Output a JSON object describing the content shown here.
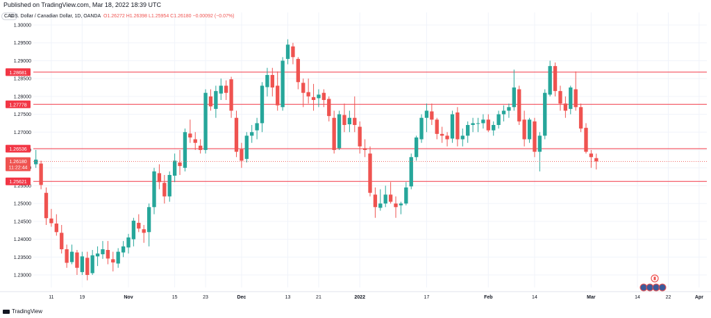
{
  "header": {
    "published": "Published on TradingView.com, Mar 18, 2022 18:39 UTC"
  },
  "legend": {
    "symbol": "U.S. Dollar / Canadian Dollar, 1D, OANDA",
    "open": "O1.26272",
    "high": "H1.26398",
    "low": "L1.25954",
    "close": "C1.26180",
    "change": "−0.00092 (−0.07%)",
    "currency": "CAD"
  },
  "price_badge": {
    "price": "1.26180",
    "countdown": "11:22:44"
  },
  "footer": {
    "brand": "TradingView"
  },
  "colors": {
    "up": "#26a69a",
    "down": "#ef5350",
    "hline": "#f23645",
    "text": "#131722",
    "grid": "#f0f3fa"
  },
  "icons": [
    "tradingview-logo-icon",
    "canada-flag-icon",
    "us-flag-icon"
  ],
  "chart_data": {
    "type": "candlestick",
    "ylim": [
      1.2265,
      1.3035
    ],
    "y_ticks": [
      "1.30500",
      "1.30000",
      "1.29500",
      "1.29000",
      "1.28500",
      "1.28000",
      "1.27500",
      "1.27000",
      "1.26500",
      "1.26000",
      "1.25500",
      "1.25000",
      "1.24500",
      "1.24000",
      "1.23500",
      "1.23000"
    ],
    "x_ticks": [
      {
        "label": "11",
        "i": 3
      },
      {
        "label": "19",
        "i": 9
      },
      {
        "label": "Nov",
        "i": 18
      },
      {
        "label": "15",
        "i": 27
      },
      {
        "label": "23",
        "i": 33
      },
      {
        "label": "Dec",
        "i": 40
      },
      {
        "label": "13",
        "i": 49
      },
      {
        "label": "21",
        "i": 55
      },
      {
        "label": "2022",
        "i": 63
      },
      {
        "label": "17",
        "i": 76
      },
      {
        "label": "Feb",
        "i": 88
      },
      {
        "label": "14",
        "i": 97
      },
      {
        "label": "Mar",
        "i": 108
      },
      {
        "label": "14",
        "i": 117
      },
      {
        "label": "22",
        "i": 123
      },
      {
        "label": "Apr",
        "i": 129
      }
    ],
    "horizontal_levels": [
      "1.28681",
      "1.27778",
      "1.26536",
      "1.25621"
    ],
    "candles": [
      [
        1.261,
        1.265,
        1.26,
        1.2623
      ],
      [
        1.2612,
        1.262,
        1.254,
        1.2552
      ],
      [
        1.253,
        1.2545,
        1.244,
        1.2459
      ],
      [
        1.2458,
        1.2485,
        1.2435,
        1.2445
      ],
      [
        1.2444,
        1.247,
        1.241,
        1.242
      ],
      [
        1.2418,
        1.244,
        1.236,
        1.2372
      ],
      [
        1.2372,
        1.2385,
        1.232,
        1.2334
      ],
      [
        1.2336,
        1.2385,
        1.233,
        1.2365
      ],
      [
        1.2363,
        1.237,
        1.23,
        1.232
      ],
      [
        1.2308,
        1.2365,
        1.23,
        1.2352
      ],
      [
        1.2348,
        1.2365,
        1.2285,
        1.23
      ],
      [
        1.2305,
        1.237,
        1.23,
        1.2355
      ],
      [
        1.2352,
        1.238,
        1.2325,
        1.236
      ],
      [
        1.2358,
        1.2395,
        1.2345,
        1.2372
      ],
      [
        1.237,
        1.2395,
        1.233,
        1.2346
      ],
      [
        1.2344,
        1.2365,
        1.231,
        1.2335
      ],
      [
        1.2332,
        1.2375,
        1.232,
        1.2365
      ],
      [
        1.2363,
        1.2395,
        1.235,
        1.238
      ],
      [
        1.2377,
        1.2415,
        1.236,
        1.2405
      ],
      [
        1.24,
        1.246,
        1.238,
        1.2452
      ],
      [
        1.2446,
        1.247,
        1.242,
        1.243
      ],
      [
        1.2428,
        1.244,
        1.239,
        1.2418
      ],
      [
        1.242,
        1.25,
        1.238,
        1.249
      ],
      [
        1.249,
        1.26,
        1.247,
        1.259
      ],
      [
        1.2585,
        1.261,
        1.254,
        1.256
      ],
      [
        1.2558,
        1.258,
        1.25,
        1.252
      ],
      [
        1.252,
        1.259,
        1.2505,
        1.258
      ],
      [
        1.2578,
        1.264,
        1.256,
        1.262
      ],
      [
        1.2615,
        1.265,
        1.258,
        1.2605
      ],
      [
        1.26,
        1.271,
        1.259,
        1.27
      ],
      [
        1.2696,
        1.2735,
        1.267,
        1.2685
      ],
      [
        1.268,
        1.27,
        1.265,
        1.267
      ],
      [
        1.2662,
        1.268,
        1.264,
        1.265
      ],
      [
        1.265,
        1.282,
        1.264,
        1.281
      ],
      [
        1.28,
        1.282,
        1.276,
        1.2772
      ],
      [
        1.2765,
        1.283,
        1.274,
        1.2815
      ],
      [
        1.2808,
        1.285,
        1.279,
        1.283
      ],
      [
        1.283,
        1.2845,
        1.279,
        1.281
      ],
      [
        1.2848,
        1.2855,
        1.274,
        1.276
      ],
      [
        1.274,
        1.276,
        1.263,
        1.2645
      ],
      [
        1.2652,
        1.267,
        1.26,
        1.262
      ],
      [
        1.2625,
        1.27,
        1.2615,
        1.269
      ],
      [
        1.269,
        1.272,
        1.267,
        1.27
      ],
      [
        1.2705,
        1.274,
        1.268,
        1.2725
      ],
      [
        1.2725,
        1.284,
        1.27,
        1.283
      ],
      [
        1.2826,
        1.288,
        1.28,
        1.286
      ],
      [
        1.286,
        1.288,
        1.28,
        1.2825
      ],
      [
        1.283,
        1.287,
        1.276,
        1.2775
      ],
      [
        1.277,
        1.291,
        1.276,
        1.29
      ],
      [
        1.2905,
        1.296,
        1.289,
        1.2945
      ],
      [
        1.294,
        1.295,
        1.289,
        1.291
      ],
      [
        1.2905,
        1.291,
        1.282,
        1.284
      ],
      [
        1.2838,
        1.285,
        1.277,
        1.281
      ],
      [
        1.2812,
        1.285,
        1.278,
        1.28
      ],
      [
        1.2798,
        1.2835,
        1.276,
        1.279
      ],
      [
        1.2795,
        1.282,
        1.277,
        1.2805
      ],
      [
        1.281,
        1.282,
        1.277,
        1.279
      ],
      [
        1.2793,
        1.28,
        1.273,
        1.2745
      ],
      [
        1.274,
        1.276,
        1.264,
        1.265
      ],
      [
        1.2655,
        1.276,
        1.265,
        1.275
      ],
      [
        1.2748,
        1.278,
        1.27,
        1.272
      ],
      [
        1.2722,
        1.276,
        1.27,
        1.274
      ],
      [
        1.274,
        1.28,
        1.27,
        1.272
      ],
      [
        1.2715,
        1.273,
        1.264,
        1.266
      ],
      [
        1.2655,
        1.268,
        1.263,
        1.265
      ],
      [
        1.264,
        1.266,
        1.252,
        1.253
      ],
      [
        1.2525,
        1.2545,
        1.246,
        1.249
      ],
      [
        1.2488,
        1.254,
        1.248,
        1.25
      ],
      [
        1.25,
        1.255,
        1.249,
        1.2525
      ],
      [
        1.2525,
        1.256,
        1.25,
        1.2505
      ],
      [
        1.25,
        1.252,
        1.246,
        1.249
      ],
      [
        1.2495,
        1.2505,
        1.247,
        1.25
      ],
      [
        1.25,
        1.256,
        1.2495,
        1.2545
      ],
      [
        1.2548,
        1.264,
        1.254,
        1.263
      ],
      [
        1.263,
        1.269,
        1.262,
        1.2685
      ],
      [
        1.268,
        1.275,
        1.267,
        1.274
      ],
      [
        1.274,
        1.278,
        1.27,
        1.276
      ],
      [
        1.2758,
        1.278,
        1.272,
        1.2735
      ],
      [
        1.2735,
        1.274,
        1.268,
        1.2695
      ],
      [
        1.2695,
        1.2715,
        1.267,
        1.269
      ],
      [
        1.269,
        1.27,
        1.266,
        1.268
      ],
      [
        1.2682,
        1.276,
        1.267,
        1.275
      ],
      [
        1.2755,
        1.277,
        1.266,
        1.268
      ],
      [
        1.268,
        1.271,
        1.266,
        1.269
      ],
      [
        1.269,
        1.273,
        1.267,
        1.272
      ],
      [
        1.272,
        1.274,
        1.27,
        1.2725
      ],
      [
        1.2725,
        1.274,
        1.27,
        1.2725
      ],
      [
        1.2725,
        1.275,
        1.271,
        1.2735
      ],
      [
        1.2735,
        1.275,
        1.27,
        1.2705
      ],
      [
        1.2705,
        1.273,
        1.269,
        1.272
      ],
      [
        1.272,
        1.276,
        1.271,
        1.275
      ],
      [
        1.275,
        1.2775,
        1.273,
        1.276
      ],
      [
        1.276,
        1.278,
        1.274,
        1.277
      ],
      [
        1.277,
        1.2875,
        1.276,
        1.2825
      ],
      [
        1.282,
        1.283,
        1.272,
        1.273
      ],
      [
        1.2735,
        1.276,
        1.266,
        1.268
      ],
      [
        1.268,
        1.274,
        1.267,
        1.2735
      ],
      [
        1.273,
        1.274,
        1.263,
        1.2645
      ],
      [
        1.2645,
        1.27,
        1.259,
        1.269
      ],
      [
        1.269,
        1.282,
        1.268,
        1.281
      ],
      [
        1.2805,
        1.29,
        1.28,
        1.2885
      ],
      [
        1.2885,
        1.2895,
        1.28,
        1.2815
      ],
      [
        1.2815,
        1.283,
        1.276,
        1.278
      ],
      [
        1.278,
        1.28,
        1.274,
        1.276
      ],
      [
        1.2765,
        1.283,
        1.275,
        1.2825
      ],
      [
        1.282,
        1.287,
        1.276,
        1.277
      ],
      [
        1.277,
        1.278,
        1.27,
        1.271
      ],
      [
        1.2712,
        1.2725,
        1.264,
        1.2645
      ],
      [
        1.264,
        1.265,
        1.26,
        1.263
      ],
      [
        1.26272,
        1.26398,
        1.25954,
        1.2618
      ]
    ]
  }
}
